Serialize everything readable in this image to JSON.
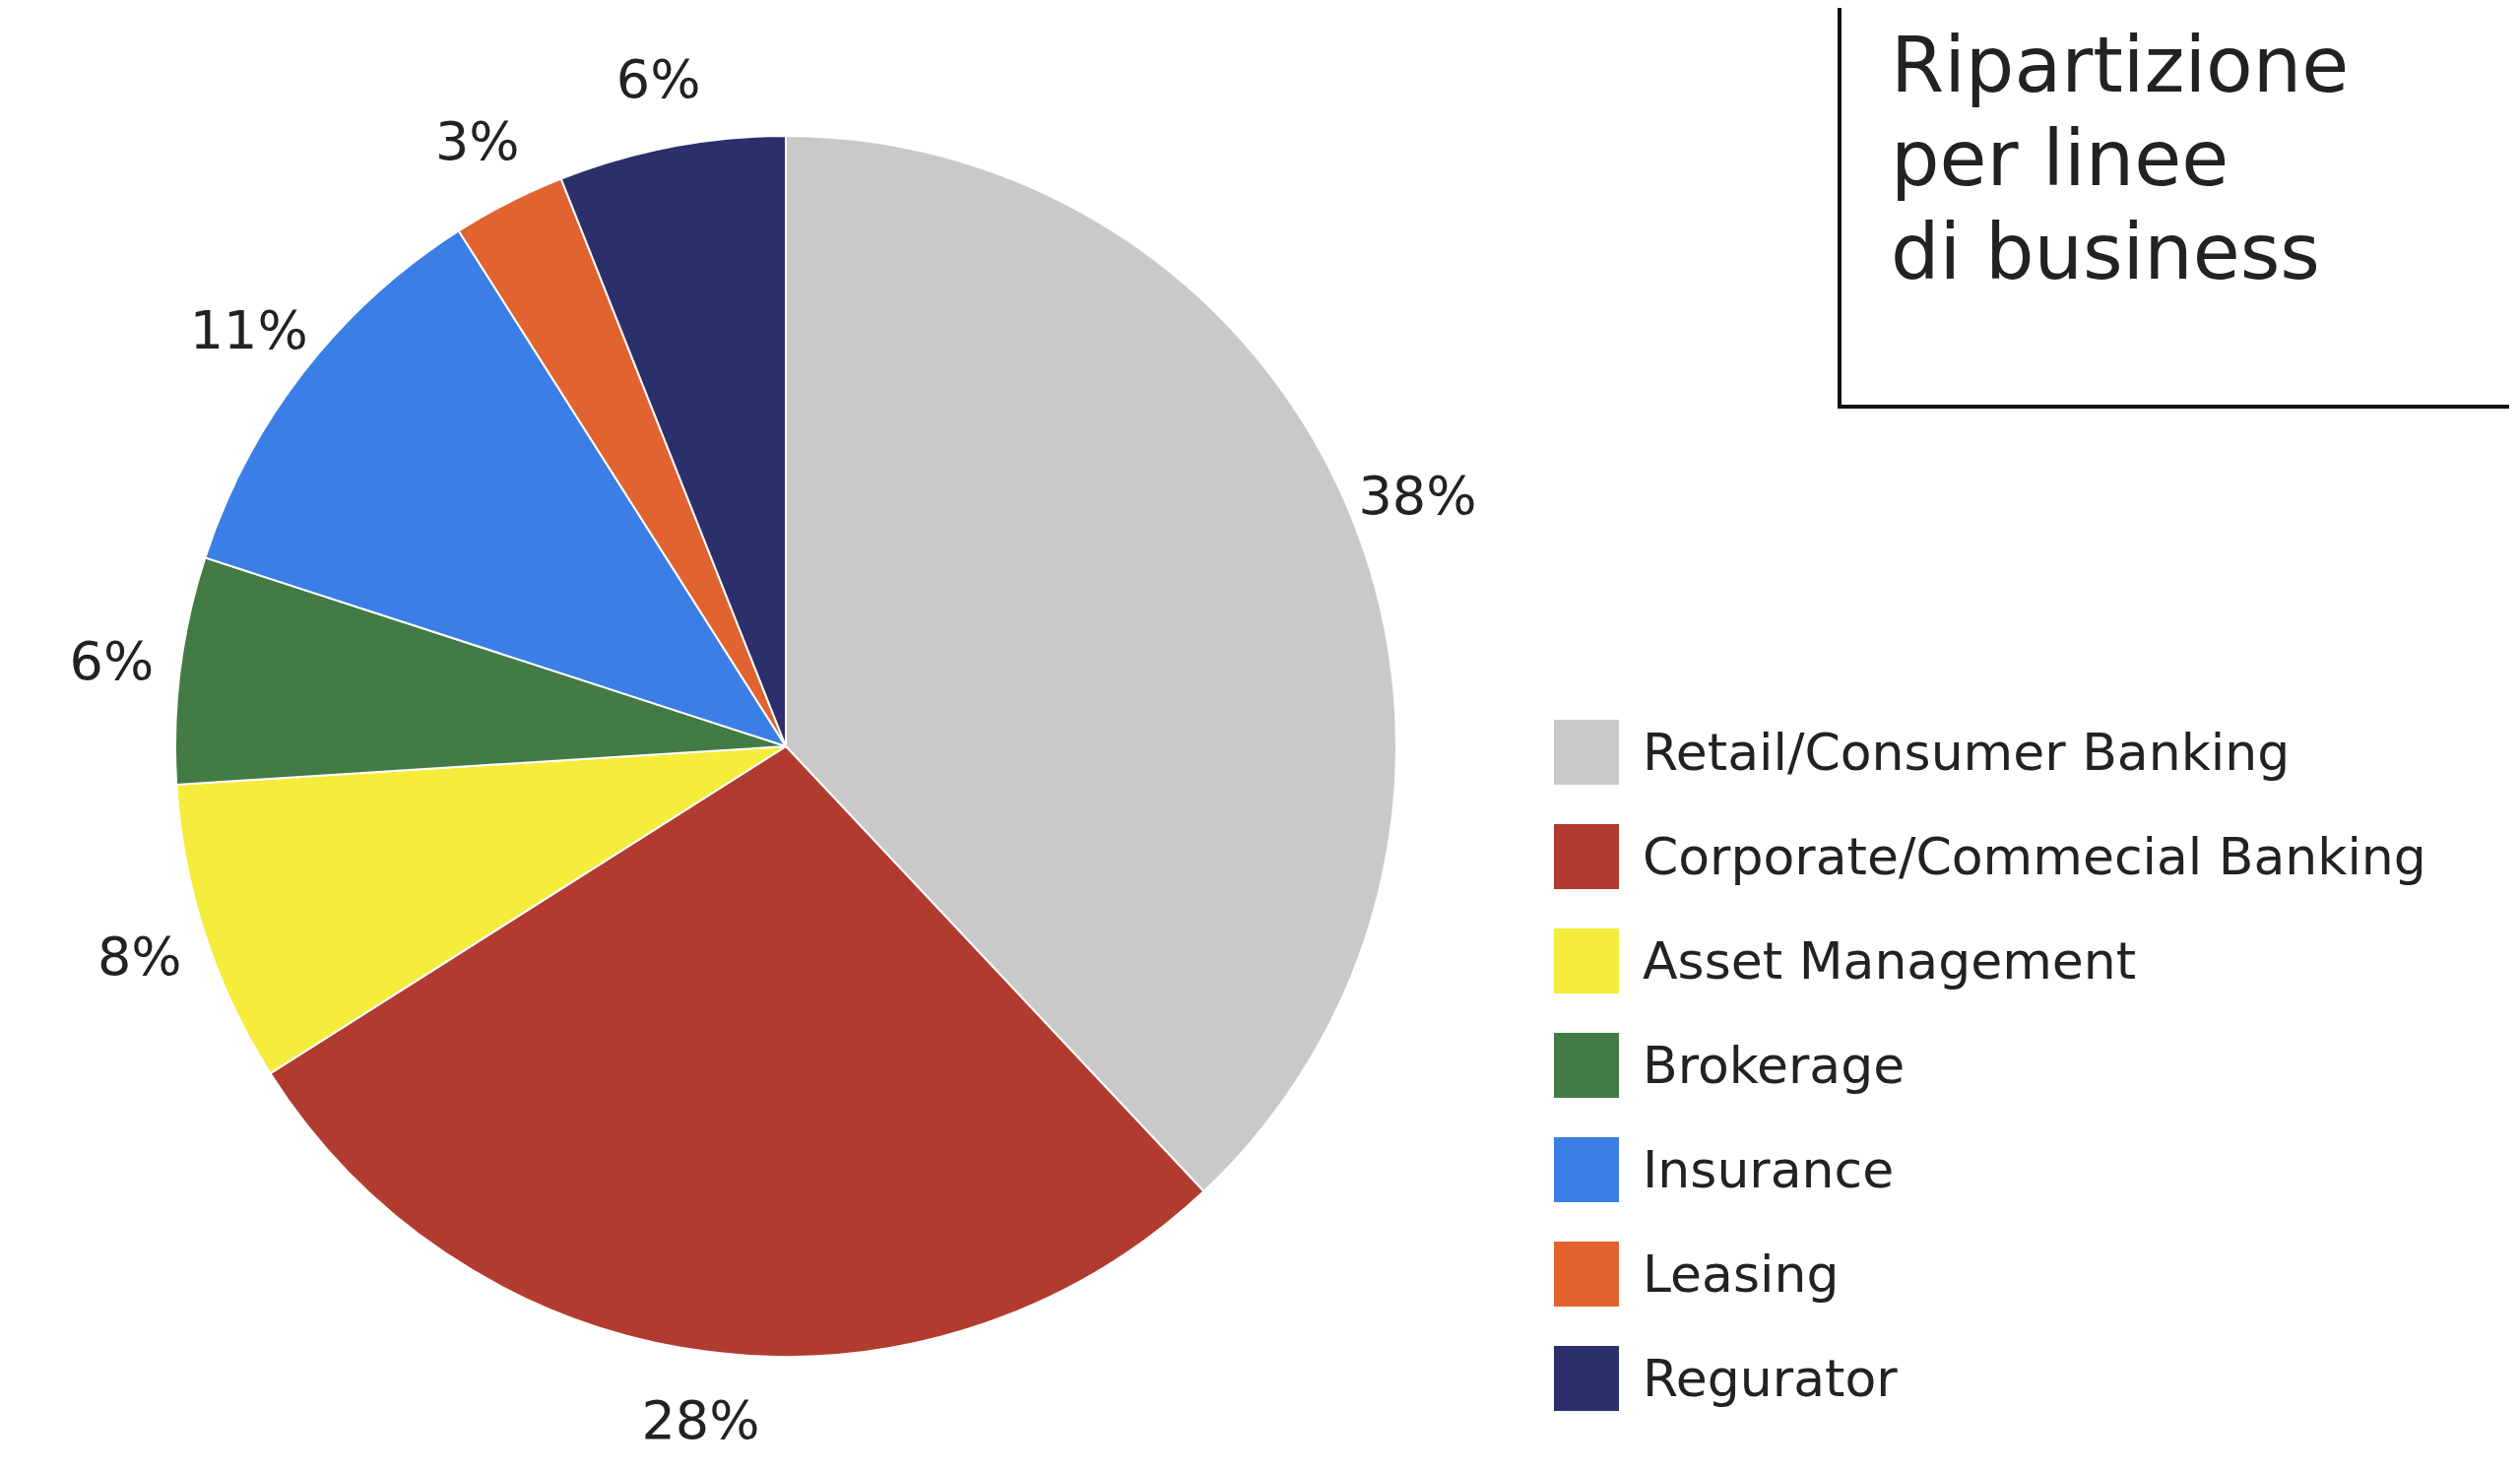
{
  "chart_data": {
    "type": "pie",
    "title": "Ripartizione per linee di business",
    "categories": [
      "Retail/Consumer Banking",
      "Corporate/Commecial Banking",
      "Asset Management",
      "Brokerage",
      "Insurance",
      "Leasing",
      "Regurator"
    ],
    "values": [
      38,
      28,
      8,
      6,
      11,
      3,
      6
    ],
    "value_labels": [
      "38%",
      "28%",
      "8%",
      "6%",
      "11%",
      "3%",
      "6%"
    ],
    "colors": [
      "#c9c9c9",
      "#b23b2f",
      "#f6ec3c",
      "#437b44",
      "#3b7fe6",
      "#e1632f",
      "#2b2f6b"
    ],
    "legend": "right"
  }
}
